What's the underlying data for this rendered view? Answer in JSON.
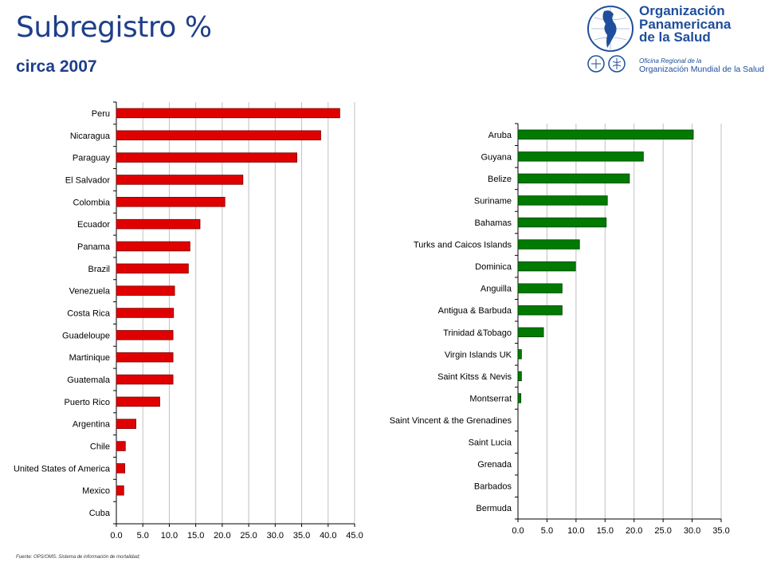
{
  "header": {
    "title": "Subregistro %",
    "subtitle": "circa 2007"
  },
  "logo": {
    "org_name": "Organización\nPanamericana\nde la Salud",
    "regional_office": "Oficina Regional de la",
    "who_name": "Organización Mundial de la Salud",
    "icon": "globe-americas-icon"
  },
  "footer": {
    "source": "Fuente: OPS/OMS. Sistema de información de mortalidad;"
  },
  "colors": {
    "title": "#1F3F8A",
    "left_bars": "#E00000",
    "right_bars": "#007A00",
    "gridline": "#C0C0C0"
  },
  "chart_data": [
    {
      "type": "bar",
      "orientation": "horizontal",
      "title": "",
      "xlabel": "",
      "ylabel": "",
      "xlim": [
        0,
        45
      ],
      "ticks": [
        "0.0",
        "5.0",
        "10.0",
        "15.0",
        "20.0",
        "25.0",
        "30.0",
        "35.0",
        "40.0",
        "45.0"
      ],
      "grid": true,
      "categories": [
        "Peru",
        "Nicaragua",
        "Paraguay",
        "El Salvador",
        "Colombia",
        "Ecuador",
        "Panama",
        "Brazil",
        "Venezuela",
        "Costa Rica",
        "Guadeloupe",
        "Martinique",
        "Guatemala",
        "Puerto Rico",
        "Argentina",
        "Chile",
        "United States of America",
        "Mexico",
        "Cuba"
      ],
      "values": [
        42.2,
        38.6,
        34.1,
        23.9,
        20.5,
        15.8,
        13.9,
        13.6,
        11.0,
        10.8,
        10.7,
        10.7,
        10.7,
        8.2,
        3.7,
        1.7,
        1.6,
        1.4,
        0.0
      ]
    },
    {
      "type": "bar",
      "orientation": "horizontal",
      "title": "",
      "xlabel": "",
      "ylabel": "",
      "xlim": [
        0,
        35
      ],
      "ticks": [
        "0.0",
        "5.0",
        "10.0",
        "15.0",
        "20.0",
        "25.0",
        "30.0",
        "35.0"
      ],
      "grid": true,
      "categories": [
        "Aruba",
        "Guyana",
        "Belize",
        "Suriname",
        "Bahamas",
        "Turks and Caicos Islands",
        "Dominica",
        "Anguilla",
        "Antigua & Barbuda",
        "Trinidad &Tobago",
        "Virgin Islands UK",
        "Saint Kitss & Nevis",
        "Montserrat",
        "Saint Vincent & the Grenadines",
        "Saint Lucia",
        "Grenada",
        "Barbados",
        "Bermuda"
      ],
      "values": [
        30.2,
        21.6,
        19.2,
        15.4,
        15.2,
        10.6,
        9.9,
        7.6,
        7.6,
        4.4,
        0.6,
        0.6,
        0.5,
        0.0,
        0.0,
        0.0,
        0.0,
        0.0
      ]
    }
  ]
}
